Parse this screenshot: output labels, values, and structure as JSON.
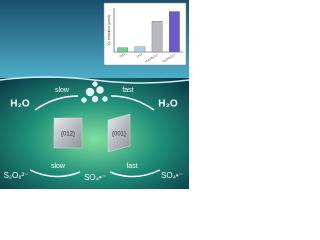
{
  "scene": {
    "left_water": "H₂O",
    "right_water": "H₂O",
    "top_slow": "slow",
    "top_fast": "fast",
    "left_facet": "{012}",
    "right_facet": "{001}",
    "bottom_left": "S₂O₈²⁻",
    "bottom_slow": "slow",
    "bottom_middle": "SO₄•⁻",
    "bottom_fast": "fast",
    "bottom_right": "SO₄•⁻"
  },
  "chart_data": {
    "type": "bar",
    "ylabel": "O₂ evolution (μmol)",
    "categories": [
      "H₂O",
      "H₂O",
      "H₂O/S₂O₈²⁻",
      "H₂O/S₂O₈²⁻"
    ],
    "values": [
      10,
      12,
      70,
      92
    ],
    "colors": [
      "#6fcf8f",
      "#9fd3e8",
      "#b8b8c0",
      "#6a5acd"
    ],
    "ylim": [
      0,
      100
    ]
  }
}
